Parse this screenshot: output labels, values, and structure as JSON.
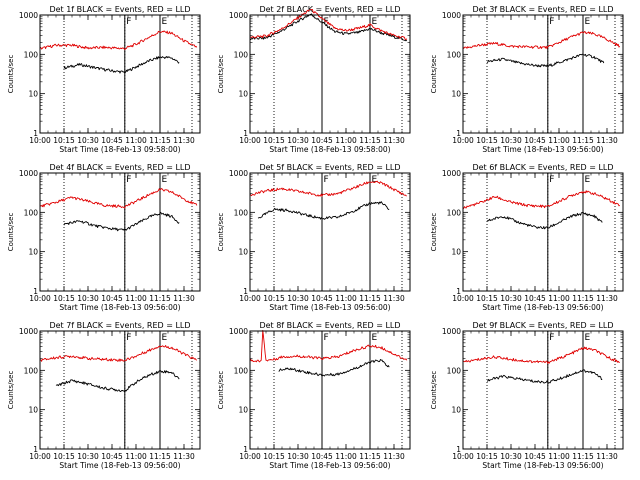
{
  "colors": {
    "events": "#000000",
    "lld": "#e00000",
    "axes": "#000000",
    "background": "#ffffff"
  },
  "chart_data": [
    {
      "type": "line",
      "title": "Det 1f BLACK = Events, RED = LLD",
      "xlabel": "Start Time (18-Feb-13 09:58:00)",
      "ylabel": "Counts/sec",
      "y_scale": "log",
      "ylim": [
        1,
        1000
      ],
      "xlim": [
        "10:00",
        "11:40"
      ],
      "x_ticks": [
        "10:00",
        "10:15",
        "10:30",
        "10:45",
        "11:00",
        "11:15",
        "11:30"
      ],
      "y_ticks": [
        "1",
        "10",
        "100",
        "1000"
      ],
      "markers": [
        {
          "time": "10:53",
          "label": "F"
        },
        {
          "time": "11:15",
          "label": "E"
        }
      ],
      "dotted_lines": [
        "10:15",
        "10:53",
        "11:15",
        "11:35"
      ],
      "series": [
        {
          "name": "Events",
          "color": "#000000",
          "x": [
            "10:15",
            "10:25",
            "10:35",
            "10:45",
            "10:53",
            "11:00",
            "11:08",
            "11:15",
            "11:22",
            "11:27"
          ],
          "values": [
            45,
            55,
            45,
            38,
            35,
            48,
            68,
            85,
            82,
            62
          ]
        },
        {
          "name": "LLD",
          "color": "#e00000",
          "x": [
            "10:00",
            "10:10",
            "10:20",
            "10:30",
            "10:40",
            "10:53",
            "11:00",
            "11:08",
            "11:15",
            "11:22",
            "11:30",
            "11:38"
          ],
          "values": [
            140,
            170,
            170,
            145,
            150,
            140,
            180,
            270,
            380,
            350,
            220,
            150
          ]
        }
      ]
    },
    {
      "type": "line",
      "title": "Det 2f BLACK = Events, RED = LLD",
      "xlabel": "Start Time (18-Feb-13 09:58:00)",
      "ylabel": "Counts/sec",
      "y_scale": "log",
      "ylim": [
        1,
        1000
      ],
      "xlim": [
        "10:00",
        "11:40"
      ],
      "x_ticks": [
        "10:00",
        "10:15",
        "10:30",
        "10:45",
        "11:00",
        "11:15",
        "11:30"
      ],
      "y_ticks": [
        "1",
        "10",
        "100",
        "1000"
      ],
      "markers": [
        {
          "time": "10:45",
          "label": "F"
        },
        {
          "time": "11:15",
          "label": "E"
        }
      ],
      "dotted_lines": [
        "10:15",
        "10:45",
        "11:15",
        "11:35"
      ],
      "series": [
        {
          "name": "Events",
          "color": "#000000",
          "x": [
            "10:00",
            "10:10",
            "10:20",
            "10:30",
            "10:38",
            "10:45",
            "10:53",
            "11:00",
            "11:08",
            "11:15",
            "11:22",
            "11:30",
            "11:38"
          ],
          "values": [
            250,
            260,
            400,
            700,
            1050,
            650,
            380,
            330,
            360,
            450,
            350,
            280,
            230
          ]
        },
        {
          "name": "LLD",
          "color": "#e00000",
          "x": [
            "10:00",
            "10:10",
            "10:20",
            "10:30",
            "10:38",
            "10:45",
            "10:53",
            "11:00",
            "11:08",
            "11:15",
            "11:22",
            "11:30",
            "11:38"
          ],
          "values": [
            270,
            290,
            450,
            850,
            1400,
            800,
            460,
            400,
            460,
            560,
            400,
            300,
            250
          ]
        }
      ]
    },
    {
      "type": "line",
      "title": "Det 3f BLACK = Events, RED = LLD",
      "xlabel": "Start Time (18-Feb-13 09:56:00)",
      "ylabel": "Counts/sec",
      "y_scale": "log",
      "ylim": [
        1,
        1000
      ],
      "xlim": [
        "10:00",
        "11:40"
      ],
      "x_ticks": [
        "10:00",
        "10:15",
        "10:30",
        "10:45",
        "11:00",
        "11:15",
        "11:30"
      ],
      "y_ticks": [
        "1",
        "10",
        "100",
        "1000"
      ],
      "markers": [
        {
          "time": "10:53",
          "label": "F"
        },
        {
          "time": "11:15",
          "label": "E"
        }
      ],
      "dotted_lines": [
        "10:15",
        "10:53",
        "11:15",
        "11:35"
      ],
      "series": [
        {
          "name": "Events",
          "color": "#000000",
          "x": [
            "10:15",
            "10:25",
            "10:35",
            "10:45",
            "10:53",
            "11:00",
            "11:08",
            "11:15",
            "11:22",
            "11:28"
          ],
          "values": [
            65,
            75,
            60,
            52,
            50,
            62,
            80,
            100,
            85,
            60
          ]
        },
        {
          "name": "LLD",
          "color": "#e00000",
          "x": [
            "10:00",
            "10:10",
            "10:20",
            "10:30",
            "10:40",
            "10:53",
            "11:00",
            "11:08",
            "11:15",
            "11:22",
            "11:30",
            "11:38"
          ],
          "values": [
            140,
            170,
            190,
            160,
            155,
            150,
            200,
            280,
            360,
            330,
            240,
            160
          ]
        }
      ]
    },
    {
      "type": "line",
      "title": "Det 4f BLACK = Events, RED = LLD",
      "xlabel": "Start Time (18-Feb-13 09:56:00)",
      "ylabel": "Counts/sec",
      "y_scale": "log",
      "ylim": [
        1,
        1000
      ],
      "xlim": [
        "10:00",
        "11:40"
      ],
      "x_ticks": [
        "10:00",
        "10:15",
        "10:30",
        "10:45",
        "11:00",
        "11:15",
        "11:30"
      ],
      "y_ticks": [
        "1",
        "10",
        "100",
        "1000"
      ],
      "markers": [
        {
          "time": "10:53",
          "label": "F"
        },
        {
          "time": "11:15",
          "label": "E"
        }
      ],
      "dotted_lines": [
        "10:15",
        "10:53",
        "11:15",
        "11:35"
      ],
      "series": [
        {
          "name": "Events",
          "color": "#000000",
          "x": [
            "10:15",
            "10:25",
            "10:35",
            "10:45",
            "10:53",
            "11:00",
            "11:08",
            "11:15",
            "11:22",
            "11:27"
          ],
          "values": [
            50,
            60,
            45,
            38,
            35,
            50,
            75,
            95,
            80,
            55
          ]
        },
        {
          "name": "LLD",
          "color": "#e00000",
          "x": [
            "10:00",
            "10:10",
            "10:20",
            "10:30",
            "10:40",
            "10:53",
            "11:00",
            "11:08",
            "11:15",
            "11:22",
            "11:30",
            "11:38"
          ],
          "values": [
            140,
            180,
            240,
            190,
            150,
            140,
            190,
            280,
            380,
            330,
            220,
            150
          ]
        }
      ]
    },
    {
      "type": "line",
      "title": "Det 5f BLACK = Events, RED = LLD",
      "xlabel": "Start Time (18-Feb-13 09:56:00)",
      "ylabel": "Counts/sec",
      "y_scale": "log",
      "ylim": [
        1,
        1000
      ],
      "xlim": [
        "10:00",
        "11:40"
      ],
      "x_ticks": [
        "10:00",
        "10:15",
        "10:30",
        "10:45",
        "11:00",
        "11:15",
        "11:30"
      ],
      "y_ticks": [
        "1",
        "10",
        "100",
        "1000"
      ],
      "markers": [
        {
          "time": "10:45",
          "label": "F"
        },
        {
          "time": "11:15",
          "label": "E"
        }
      ],
      "dotted_lines": [
        "10:15",
        "10:45",
        "11:15",
        "11:35"
      ],
      "series": [
        {
          "name": "Events",
          "color": "#000000",
          "x": [
            "10:05",
            "10:15",
            "10:25",
            "10:35",
            "10:45",
            "10:55",
            "11:05",
            "11:15",
            "11:22",
            "11:27"
          ],
          "values": [
            70,
            120,
            110,
            85,
            70,
            75,
            110,
            170,
            175,
            120
          ]
        },
        {
          "name": "LLD",
          "color": "#e00000",
          "x": [
            "10:00",
            "10:10",
            "10:20",
            "10:30",
            "10:40",
            "10:45",
            "10:55",
            "11:05",
            "11:15",
            "11:22",
            "11:30",
            "11:38"
          ],
          "values": [
            280,
            350,
            400,
            340,
            290,
            270,
            300,
            420,
            600,
            560,
            380,
            260
          ]
        }
      ]
    },
    {
      "type": "line",
      "title": "Det 6f BLACK = Events, RED = LLD",
      "xlabel": "Start Time (18-Feb-13 09:56:00)",
      "ylabel": "Counts/sec",
      "y_scale": "log",
      "ylim": [
        1,
        1000
      ],
      "xlim": [
        "10:00",
        "11:40"
      ],
      "x_ticks": [
        "10:00",
        "10:15",
        "10:30",
        "10:45",
        "11:00",
        "11:15",
        "11:30"
      ],
      "y_ticks": [
        "1",
        "10",
        "100",
        "1000"
      ],
      "markers": [
        {
          "time": "10:53",
          "label": "F"
        },
        {
          "time": "11:15",
          "label": "E"
        }
      ],
      "dotted_lines": [
        "10:15",
        "10:53",
        "11:15",
        "11:35"
      ],
      "series": [
        {
          "name": "Events",
          "color": "#000000",
          "x": [
            "10:15",
            "10:25",
            "10:35",
            "10:45",
            "10:53",
            "11:00",
            "11:08",
            "11:15",
            "11:22",
            "11:27"
          ],
          "values": [
            60,
            80,
            55,
            42,
            40,
            55,
            80,
            95,
            80,
            55
          ]
        },
        {
          "name": "LLD",
          "color": "#e00000",
          "x": [
            "10:00",
            "10:10",
            "10:20",
            "10:30",
            "10:40",
            "10:53",
            "11:00",
            "11:08",
            "11:15",
            "11:22",
            "11:30",
            "11:38"
          ],
          "values": [
            130,
            170,
            250,
            180,
            150,
            140,
            190,
            270,
            340,
            300,
            220,
            150
          ]
        }
      ]
    },
    {
      "type": "line",
      "title": "Det 7f BLACK = Events, RED = LLD",
      "xlabel": "Start Time (18-Feb-13 09:56:00)",
      "ylabel": "Counts/sec",
      "y_scale": "log",
      "ylim": [
        1,
        1000
      ],
      "xlim": [
        "10:00",
        "11:40"
      ],
      "x_ticks": [
        "10:00",
        "10:15",
        "10:30",
        "10:45",
        "11:00",
        "11:15",
        "11:30"
      ],
      "y_ticks": [
        "1",
        "10",
        "100",
        "1000"
      ],
      "markers": [
        {
          "time": "10:53",
          "label": "F"
        },
        {
          "time": "11:15",
          "label": "E"
        }
      ],
      "dotted_lines": [
        "10:15",
        "10:53",
        "11:15",
        "11:35"
      ],
      "series": [
        {
          "name": "Events",
          "color": "#000000",
          "x": [
            "10:10",
            "10:20",
            "10:30",
            "10:40",
            "10:53",
            "11:00",
            "11:08",
            "11:15",
            "11:22",
            "11:27"
          ],
          "values": [
            40,
            55,
            45,
            35,
            30,
            50,
            75,
            95,
            90,
            60
          ]
        },
        {
          "name": "LLD",
          "color": "#e00000",
          "x": [
            "10:00",
            "10:10",
            "10:20",
            "10:30",
            "10:40",
            "10:53",
            "11:00",
            "11:08",
            "11:15",
            "11:22",
            "11:30",
            "11:38"
          ],
          "values": [
            180,
            210,
            230,
            200,
            190,
            180,
            230,
            320,
            420,
            380,
            260,
            180
          ]
        }
      ]
    },
    {
      "type": "line",
      "title": "Det 8f BLACK = Events, RED = LLD",
      "xlabel": "Start Time (18-Feb-13 09:56:00)",
      "ylabel": "Counts/sec",
      "y_scale": "log",
      "ylim": [
        1,
        1000
      ],
      "xlim": [
        "10:00",
        "11:40"
      ],
      "x_ticks": [
        "10:00",
        "10:15",
        "10:30",
        "10:45",
        "11:00",
        "11:15",
        "11:30"
      ],
      "y_ticks": [
        "1",
        "10",
        "100",
        "1000"
      ],
      "markers": [
        {
          "time": "10:45",
          "label": "F"
        },
        {
          "time": "11:15",
          "label": "E"
        }
      ],
      "dotted_lines": [
        "10:15",
        "10:45",
        "11:15",
        "11:35"
      ],
      "series": [
        {
          "name": "Events",
          "color": "#000000",
          "x": [
            "10:18",
            "10:25",
            "10:35",
            "10:45",
            "10:55",
            "11:05",
            "11:15",
            "11:22",
            "11:27"
          ],
          "values": [
            100,
            110,
            90,
            75,
            80,
            110,
            160,
            180,
            120
          ]
        },
        {
          "name": "LLD",
          "color": "#e00000",
          "x": [
            "10:00",
            "10:05",
            "10:07",
            "10:08",
            "10:10",
            "10:15",
            "10:20",
            "10:30",
            "10:40",
            "10:45",
            "10:55",
            "11:05",
            "11:15",
            "11:22",
            "11:30",
            "11:38"
          ],
          "values": [
            180,
            170,
            180,
            1000,
            180,
            190,
            220,
            230,
            210,
            200,
            220,
            320,
            420,
            380,
            260,
            180
          ]
        }
      ]
    },
    {
      "type": "line",
      "title": "Det 9f BLACK = Events, RED = LLD",
      "xlabel": "Start Time (18-Feb-13 09:56:00)",
      "ylabel": "Counts/sec",
      "y_scale": "log",
      "ylim": [
        1,
        1000
      ],
      "xlim": [
        "10:00",
        "11:40"
      ],
      "x_ticks": [
        "10:00",
        "10:15",
        "10:30",
        "10:45",
        "11:00",
        "11:15",
        "11:30"
      ],
      "y_ticks": [
        "1",
        "10",
        "100",
        "1000"
      ],
      "markers": [
        {
          "time": "10:53",
          "label": "F"
        },
        {
          "time": "11:15",
          "label": "E"
        }
      ],
      "dotted_lines": [
        "10:15",
        "10:53",
        "11:15",
        "11:35"
      ],
      "series": [
        {
          "name": "Events",
          "color": "#000000",
          "x": [
            "10:15",
            "10:25",
            "10:35",
            "10:45",
            "10:53",
            "11:00",
            "11:08",
            "11:15",
            "11:22",
            "11:27"
          ],
          "values": [
            55,
            70,
            60,
            52,
            50,
            60,
            80,
            100,
            85,
            60
          ]
        },
        {
          "name": "LLD",
          "color": "#e00000",
          "x": [
            "10:00",
            "10:10",
            "10:20",
            "10:30",
            "10:40",
            "10:53",
            "11:00",
            "11:08",
            "11:15",
            "11:22",
            "11:30",
            "11:38"
          ],
          "values": [
            160,
            190,
            220,
            190,
            170,
            160,
            200,
            270,
            370,
            330,
            220,
            160
          ]
        }
      ]
    }
  ]
}
